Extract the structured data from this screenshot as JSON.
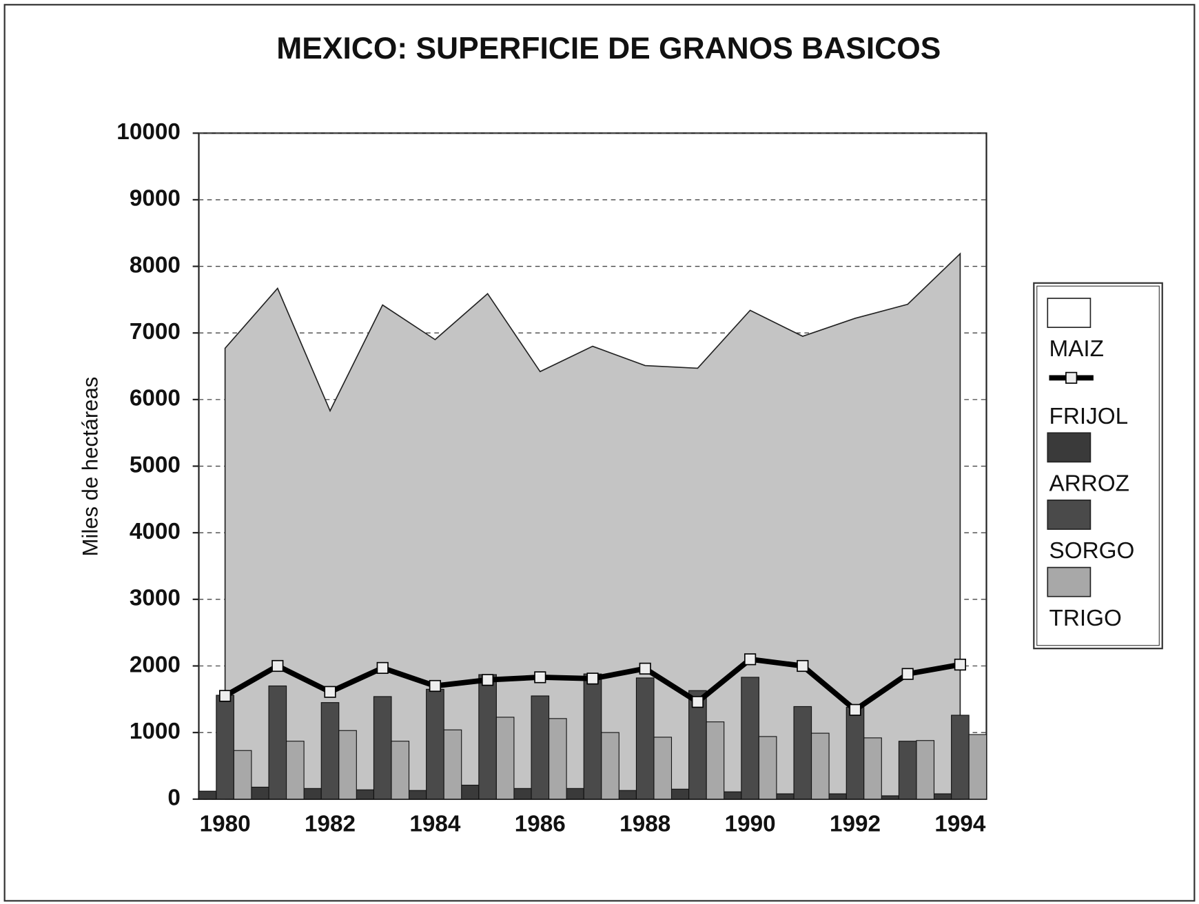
{
  "chart_data": {
    "type": "bar",
    "title": "MEXICO:  SUPERFICIE DE GRANOS BASICOS",
    "y_label": "Miles de hectáreas",
    "categories": [
      "1980",
      null,
      "1982",
      null,
      "1984",
      null,
      "1986",
      null,
      "1988",
      null,
      "1990",
      null,
      "1992",
      null,
      "1994"
    ],
    "series": [
      {
        "name": "MAIZ",
        "type": "area",
        "color": "#c4c4c4",
        "values": [
          6770,
          7670,
          5830,
          7420,
          6900,
          7590,
          6420,
          6800,
          6510,
          6470,
          7340,
          6950,
          7220,
          7430,
          8190
        ]
      },
      {
        "name": "FRIJOL",
        "type": "line",
        "color": "#000000",
        "values": [
          1550,
          2000,
          1610,
          1970,
          1700,
          1790,
          1830,
          1810,
          1960,
          1460,
          2100,
          2000,
          1340,
          1880,
          2020
        ]
      },
      {
        "name": "ARROZ",
        "type": "bar",
        "color": "#3a3a3a",
        "values": [
          120,
          180,
          160,
          140,
          130,
          210,
          160,
          160,
          130,
          150,
          110,
          80,
          80,
          50,
          80
        ]
      },
      {
        "name": "SORGO",
        "type": "bar",
        "color": "#4a4a4a",
        "values": [
          1560,
          1700,
          1450,
          1540,
          1650,
          1870,
          1550,
          1880,
          1820,
          1630,
          1830,
          1390,
          1380,
          870,
          1260
        ]
      },
      {
        "name": "TRIGO",
        "type": "bar",
        "color": "#a8a8a8",
        "values": [
          730,
          870,
          1030,
          870,
          1040,
          1230,
          1210,
          1000,
          930,
          1160,
          940,
          990,
          920,
          880,
          970
        ]
      }
    ],
    "ylim": [
      0,
      10000
    ],
    "yticks": [
      0,
      1000,
      2000,
      3000,
      4000,
      5000,
      6000,
      7000,
      8000,
      9000,
      10000
    ],
    "grid": true
  }
}
